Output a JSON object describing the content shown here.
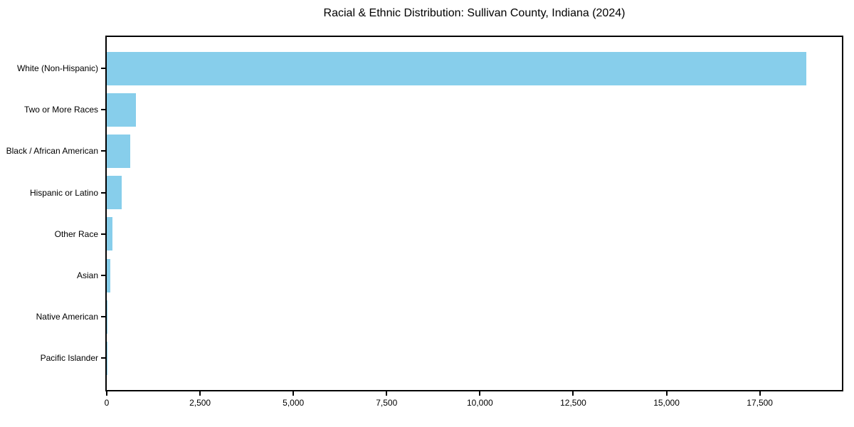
{
  "chart_data": {
    "type": "bar",
    "orientation": "horizontal",
    "title": "Racial & Ethnic Distribution: Sullivan County, Indiana (2024)",
    "categories": [
      "White (Non-Hispanic)",
      "Two or More Races",
      "Black / African American",
      "Hispanic or Latino",
      "Other Race",
      "Asian",
      "Native American",
      "Pacific Islander"
    ],
    "values": [
      18750,
      780,
      620,
      400,
      145,
      100,
      25,
      8
    ],
    "bar_color": "#87CEEB",
    "xlabel": "",
    "ylabel": "",
    "xlim": [
      0,
      19700
    ],
    "x_ticks": [
      0,
      2500,
      5000,
      7500,
      10000,
      12500,
      15000,
      17500
    ],
    "x_tick_labels": [
      "0",
      "2,500",
      "5,000",
      "7,500",
      "10,000",
      "12,500",
      "15,000",
      "17,500"
    ],
    "grid": false,
    "legend": null,
    "background_color": "#ffffff",
    "text_color": "#000000"
  }
}
